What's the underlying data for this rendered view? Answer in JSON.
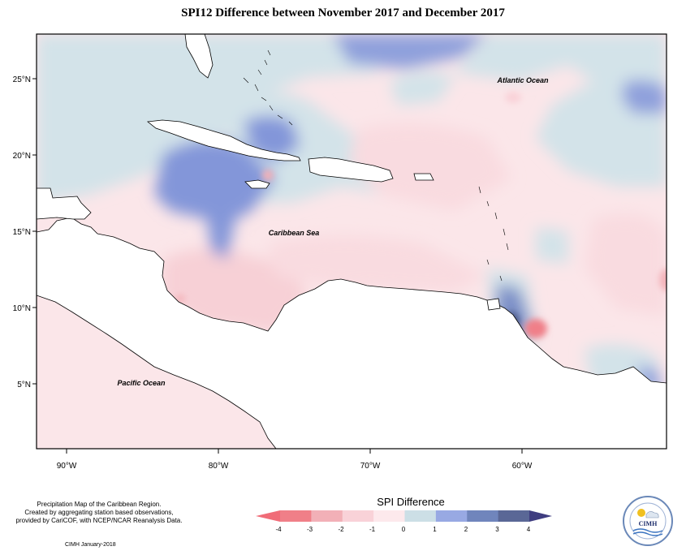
{
  "title": "SPI12 Difference between November 2017 and December 2017",
  "map": {
    "ocean_labels": [
      "Atlantic Ocean",
      "Caribbean Sea",
      "Pacific Ocean"
    ],
    "lat_ticks": [
      "25°N",
      "20°N",
      "15°N",
      "10°N",
      "5°N"
    ],
    "lon_ticks": [
      "90°W",
      "80°W",
      "70°W",
      "60°W"
    ],
    "extent": {
      "lon_min": -92,
      "lon_max": -50,
      "lat_min": 2,
      "lat_max": 28
    }
  },
  "legend": {
    "title": "SPI Difference",
    "tick_labels": [
      "-4",
      "-3",
      "-2",
      "-1",
      "0",
      "1",
      "2",
      "3",
      "4"
    ],
    "colors": [
      "#f07f88",
      "#f2b0b7",
      "#f9d2d8",
      "#fde9ec",
      "#ccdfe6",
      "#98a9e3",
      "#7085bc",
      "#5a6796"
    ],
    "arrow_low_color": "#f06c78",
    "arrow_high_color": "#3f3d80"
  },
  "credit": {
    "line1": "Precipitation Map of the Caribbean Region.",
    "line2": "Created by aggregating station based observations,",
    "line3": "provided by CariCOF, with NCEP/NCAR Reanalysis Data."
  },
  "footer": "CIMH January-2018",
  "logo": {
    "text": "CIMH"
  }
}
